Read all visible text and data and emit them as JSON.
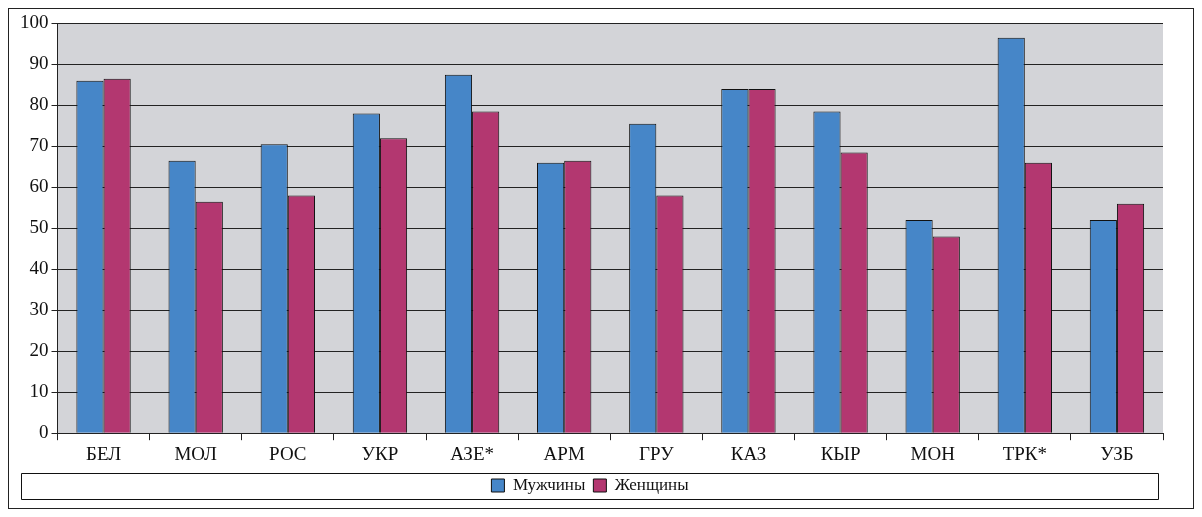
{
  "chart_data": {
    "type": "bar",
    "categories": [
      "БЕЛ",
      "МОЛ",
      "РОС",
      "УКР",
      "АЗЕ*",
      "АРМ",
      "ГРУ",
      "КАЗ",
      "КЫР",
      "МОН",
      "ТРК*",
      "УЗБ"
    ],
    "series": [
      {
        "name": "Мужчины",
        "color": "#4686c8",
        "values": [
          86,
          66.5,
          70.5,
          78,
          87.5,
          66,
          75.5,
          84,
          78.5,
          52,
          96.5,
          52
        ]
      },
      {
        "name": "Женщины",
        "color": "#b33770",
        "values": [
          86.5,
          56.5,
          58,
          72,
          78.5,
          66.5,
          58,
          84,
          68.5,
          48,
          66,
          56
        ]
      }
    ],
    "ylim": [
      0,
      100
    ],
    "yticks": [
      0,
      10,
      20,
      30,
      40,
      50,
      60,
      70,
      80,
      90,
      100
    ],
    "grid": "y",
    "legend": "bottom"
  }
}
